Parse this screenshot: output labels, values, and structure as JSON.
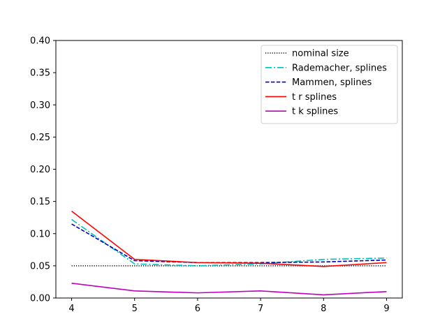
{
  "chart_data": {
    "type": "line",
    "title": "",
    "xlabel": "",
    "ylabel": "",
    "x": [
      4,
      5,
      6,
      7,
      8,
      9
    ],
    "xlim": [
      3.75,
      9.25
    ],
    "ylim": [
      0.0,
      0.4
    ],
    "xticks": [
      4,
      5,
      6,
      7,
      8,
      9
    ],
    "yticks": [
      0.0,
      0.05,
      0.1,
      0.15,
      0.2,
      0.25,
      0.3,
      0.35,
      0.4
    ],
    "grid": false,
    "legend_position": "top-right",
    "series": [
      {
        "name": "nominal size",
        "color": "#000000",
        "style": "dotted",
        "values": [
          0.05,
          0.05,
          0.05,
          0.05,
          0.05,
          0.05
        ]
      },
      {
        "name": "Rademacher, splines",
        "color": "#00bfbf",
        "style": "dashdot",
        "values": [
          0.122,
          0.053,
          0.05,
          0.053,
          0.06,
          0.062
        ]
      },
      {
        "name": "Mammen, splines",
        "color": "#0000bf",
        "style": "dashed",
        "values": [
          0.115,
          0.058,
          0.055,
          0.055,
          0.056,
          0.059
        ]
      },
      {
        "name": "t r splines",
        "color": "#ff0000",
        "style": "solid",
        "values": [
          0.135,
          0.06,
          0.055,
          0.054,
          0.049,
          0.055
        ]
      },
      {
        "name": "t k splines",
        "color": "#bf00bf",
        "style": "solid",
        "values": [
          0.023,
          0.011,
          0.008,
          0.011,
          0.005,
          0.01
        ]
      }
    ]
  }
}
